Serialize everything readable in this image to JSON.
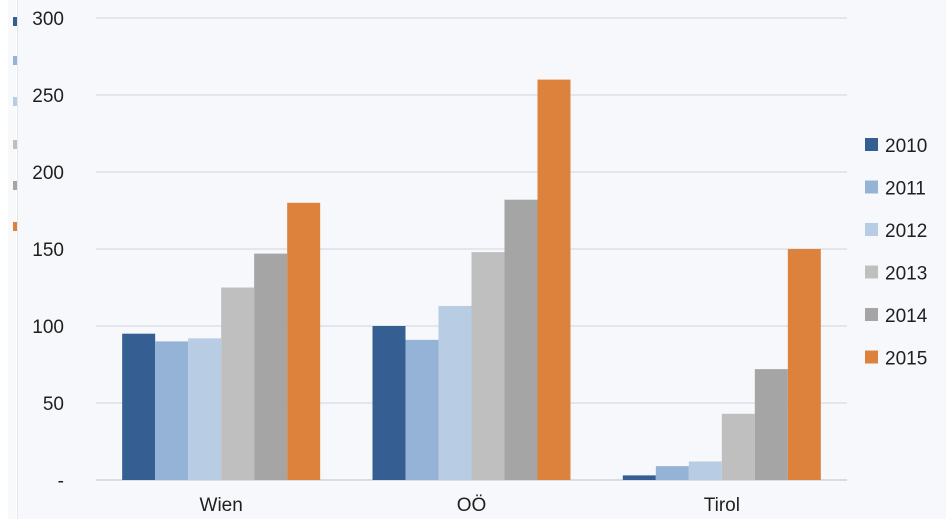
{
  "chart_data": {
    "type": "bar",
    "categories": [
      "Wien",
      "OÖ",
      "Tirol"
    ],
    "series": [
      {
        "name": "2010",
        "color": "#355e92",
        "values": [
          95,
          100,
          3
        ]
      },
      {
        "name": "2011",
        "color": "#95b3d7",
        "values": [
          90,
          91,
          9
        ]
      },
      {
        "name": "2012",
        "color": "#b8cce4",
        "values": [
          92,
          113,
          12
        ]
      },
      {
        "name": "2013",
        "color": "#bfbfbf",
        "values": [
          125,
          148,
          43
        ]
      },
      {
        "name": "2014",
        "color": "#a5a5a5",
        "values": [
          147,
          182,
          72
        ]
      },
      {
        "name": "2015",
        "color": "#dd823d",
        "values": [
          180,
          260,
          150
        ]
      }
    ],
    "y_ticks": [
      "-",
      "50",
      "100",
      "150",
      "200",
      "250",
      "300"
    ],
    "ylim": [
      0,
      300
    ],
    "grid": true,
    "legend_position": "right",
    "title": "",
    "xlabel": "",
    "ylabel": ""
  }
}
